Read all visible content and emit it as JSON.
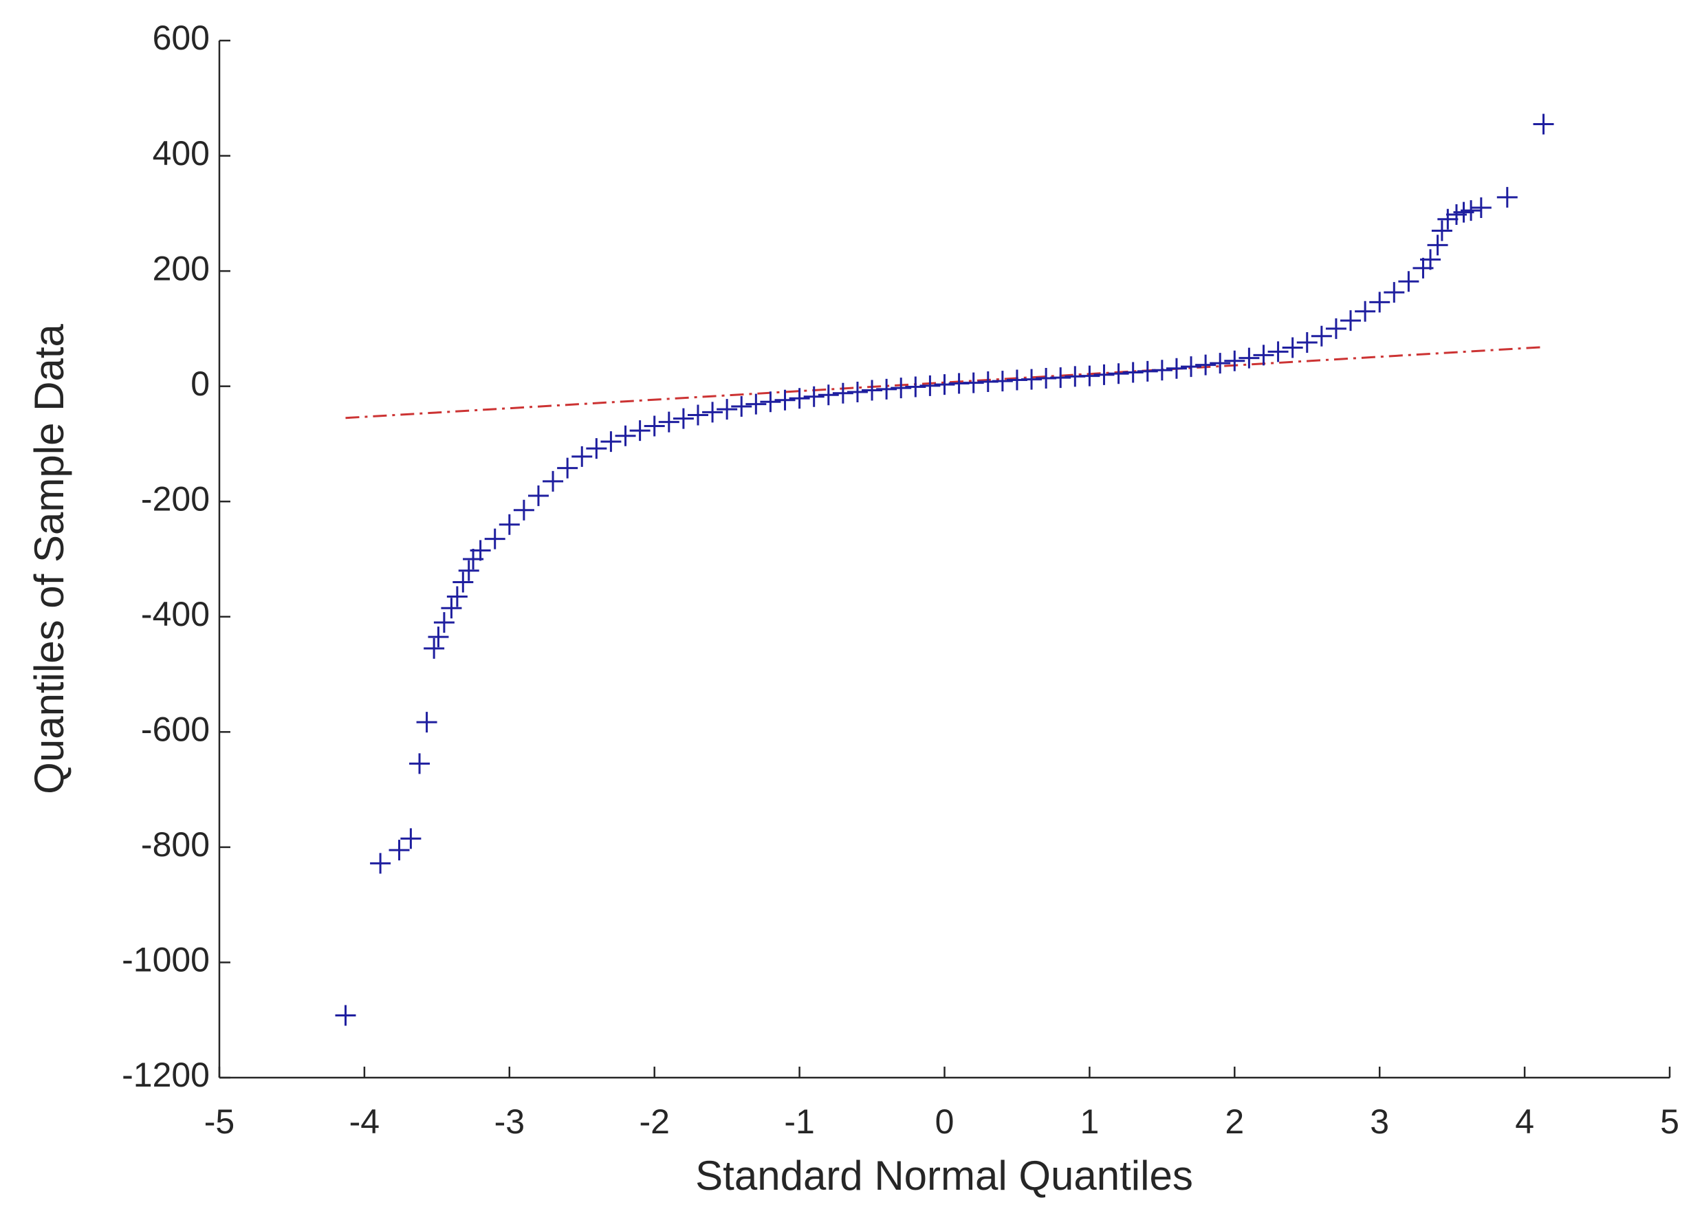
{
  "chart_data": {
    "type": "scatter",
    "xlabel": "Standard Normal Quantiles",
    "ylabel": "Quantiles of Sample Data",
    "xlim": [
      -5,
      5
    ],
    "xticks": [
      -5,
      -4,
      -3,
      -2,
      -1,
      0,
      1,
      2,
      3,
      4,
      5
    ],
    "ylim": [
      -1200,
      600
    ],
    "yticks": [
      -1200,
      -1000,
      -800,
      -600,
      -400,
      -200,
      0,
      200,
      400,
      600
    ],
    "grid": false,
    "marker": "+",
    "color": "#1f1f9f",
    "x": [
      -4.13,
      -3.89,
      -3.76,
      -3.68,
      -3.62,
      -3.57,
      -3.52,
      -3.49,
      -3.45,
      -3.4,
      -3.36,
      -3.32,
      -3.28,
      -3.25,
      -3.2,
      -3.1,
      -3.0,
      -2.9,
      -2.8,
      -2.7,
      -2.6,
      -2.5,
      -2.4,
      -2.3,
      -2.2,
      -2.1,
      -2.0,
      -1.9,
      -1.8,
      -1.7,
      -1.6,
      -1.5,
      -1.4,
      -1.3,
      -1.2,
      -1.1,
      -1.0,
      -0.9,
      -0.8,
      -0.7,
      -0.6,
      -0.5,
      -0.4,
      -0.3,
      -0.2,
      -0.1,
      0,
      0.1,
      0.2,
      0.3,
      0.4,
      0.5,
      0.6,
      0.7,
      0.8,
      0.9,
      1.0,
      1.1,
      1.2,
      1.3,
      1.4,
      1.5,
      1.6,
      1.7,
      1.8,
      1.9,
      2.0,
      2.1,
      2.2,
      2.3,
      2.4,
      2.5,
      2.6,
      2.7,
      2.8,
      2.9,
      3.0,
      3.1,
      3.2,
      3.3,
      3.35,
      3.4,
      3.43,
      3.47,
      3.53,
      3.58,
      3.63,
      3.7,
      3.88,
      4.13
    ],
    "y": [
      -1092,
      -828,
      -805,
      -785,
      -655,
      -583,
      -455,
      -435,
      -410,
      -385,
      -365,
      -340,
      -320,
      -300,
      -285,
      -265,
      -240,
      -215,
      -190,
      -165,
      -142,
      -122,
      -108,
      -96,
      -86,
      -77,
      -69,
      -62,
      -56,
      -50,
      -45,
      -40,
      -35,
      -31,
      -27,
      -24,
      -21,
      -18,
      -15,
      -12,
      -10,
      -7,
      -5,
      -3,
      -1,
      1,
      3,
      5,
      6,
      8,
      9,
      11,
      12,
      14,
      15,
      17,
      18,
      20,
      22,
      24,
      26,
      28,
      31,
      34,
      37,
      40,
      44,
      49,
      54,
      60,
      67,
      76,
      87,
      100,
      114,
      130,
      146,
      163,
      182,
      205,
      220,
      245,
      270,
      290,
      298,
      302,
      305,
      310,
      328,
      455
    ],
    "reference_line": {
      "x": [
        -4.13,
        4.13
      ],
      "y": [
        -55,
        68
      ],
      "color": "#cc3333",
      "style": "dash-dot"
    }
  }
}
